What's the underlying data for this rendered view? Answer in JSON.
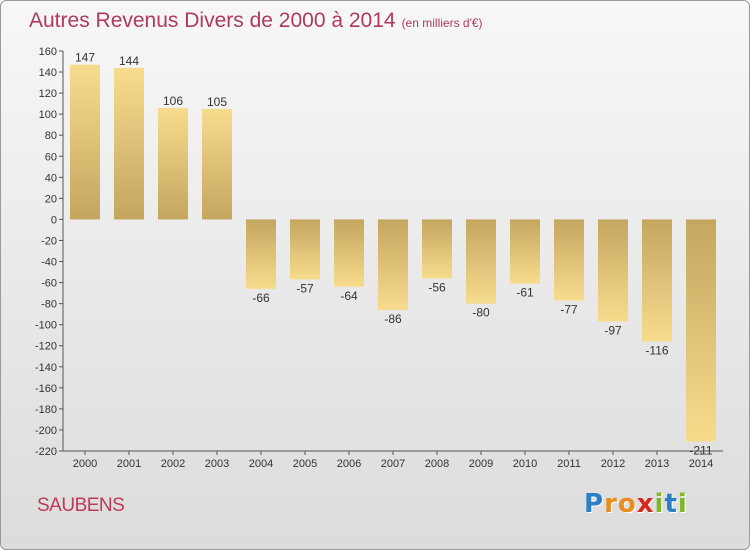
{
  "header": {
    "title": "Autres Revenus Divers de 2000 à 2014",
    "unit": "(en milliers d'€)"
  },
  "footer": {
    "commune": "SAUBENS",
    "logo": "Proxiti"
  },
  "colors": {
    "title": "#b03a5b",
    "bar_light": "#f7dc8e",
    "bar_dark": "#c4a65f",
    "axis": "#555555"
  },
  "chart_data": {
    "type": "bar",
    "title": "Autres Revenus Divers de 2000 à 2014",
    "subtitle": "(en milliers d'€)",
    "xlabel": "",
    "ylabel": "",
    "categories": [
      "2000",
      "2001",
      "2002",
      "2003",
      "2004",
      "2005",
      "2006",
      "2007",
      "2008",
      "2009",
      "2010",
      "2011",
      "2012",
      "2013",
      "2014"
    ],
    "values": [
      147,
      144,
      106,
      105,
      -66,
      -57,
      -64,
      -86,
      -56,
      -80,
      -61,
      -77,
      -97,
      -116,
      -211
    ],
    "labels": [
      "147",
      "144",
      "106",
      "105",
      "-66",
      "-57",
      "-64",
      "-86",
      "-56",
      "-80",
      "-61",
      "-77",
      "-97",
      "-116",
      "-211"
    ],
    "ylim": [
      -220,
      160
    ],
    "yticks": [
      160,
      140,
      120,
      100,
      80,
      60,
      40,
      20,
      0,
      -20,
      -40,
      -60,
      -80,
      -100,
      -120,
      -140,
      -160,
      -180,
      -200,
      -220
    ],
    "ytick_labels": [
      "160",
      "140",
      "120",
      "100",
      "80",
      "60",
      "40",
      "20",
      "0",
      "-20",
      "-40",
      "-60",
      "-80",
      "-100",
      "-120",
      "-140",
      "-160",
      "-180",
      "-200",
      "-220"
    ],
    "grid": false,
    "legend": "none"
  }
}
